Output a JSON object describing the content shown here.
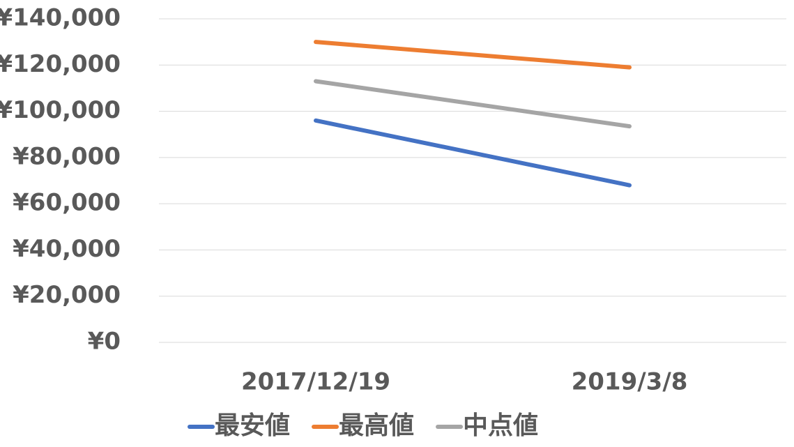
{
  "chart_data": {
    "type": "line",
    "categories": [
      "2017/12/19",
      "2019/3/8"
    ],
    "series": [
      {
        "name": "最安値",
        "color": "#4472c4",
        "values": [
          96000,
          68000
        ]
      },
      {
        "name": "最高値",
        "color": "#ed7d31",
        "values": [
          130000,
          119000
        ]
      },
      {
        "name": "中点値",
        "color": "#a5a5a5",
        "values": [
          113000,
          93500
        ]
      }
    ],
    "ylim": [
      0,
      140000
    ],
    "yticks": [
      {
        "value": 0,
        "label": "¥0"
      },
      {
        "value": 20000,
        "label": "¥20,000"
      },
      {
        "value": 40000,
        "label": "¥40,000"
      },
      {
        "value": 60000,
        "label": "¥60,000"
      },
      {
        "value": 80000,
        "label": "¥80,000"
      },
      {
        "value": 100000,
        "label": "¥100,000"
      },
      {
        "value": 120000,
        "label": "¥120,000"
      },
      {
        "value": 140000,
        "label": "¥140,000"
      }
    ],
    "grid": true,
    "legend": "bottom"
  }
}
